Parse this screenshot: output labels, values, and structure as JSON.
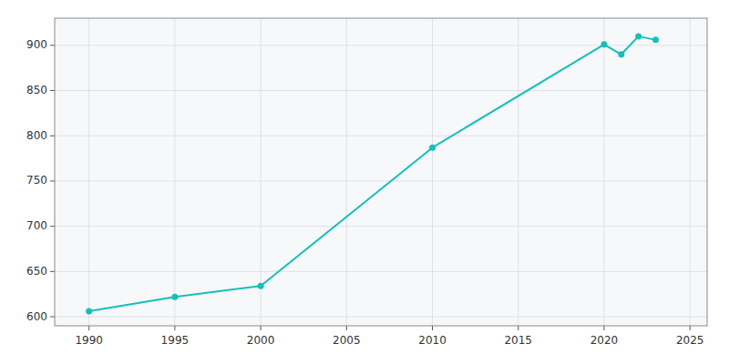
{
  "chart_data": {
    "type": "line",
    "x": [
      1990,
      1995,
      2000,
      2010,
      2020,
      2021,
      2022,
      2023
    ],
    "values": [
      606,
      622,
      634,
      787,
      901,
      890,
      910,
      906
    ],
    "color": "#17bebb",
    "marker": "circle",
    "xlim": [
      1988,
      2026
    ],
    "ylim": [
      590,
      930
    ],
    "xticks": [
      1990,
      1995,
      2000,
      2005,
      2010,
      2015,
      2020,
      2025
    ],
    "yticks": [
      600,
      650,
      700,
      750,
      800,
      850,
      900
    ],
    "grid": true
  }
}
